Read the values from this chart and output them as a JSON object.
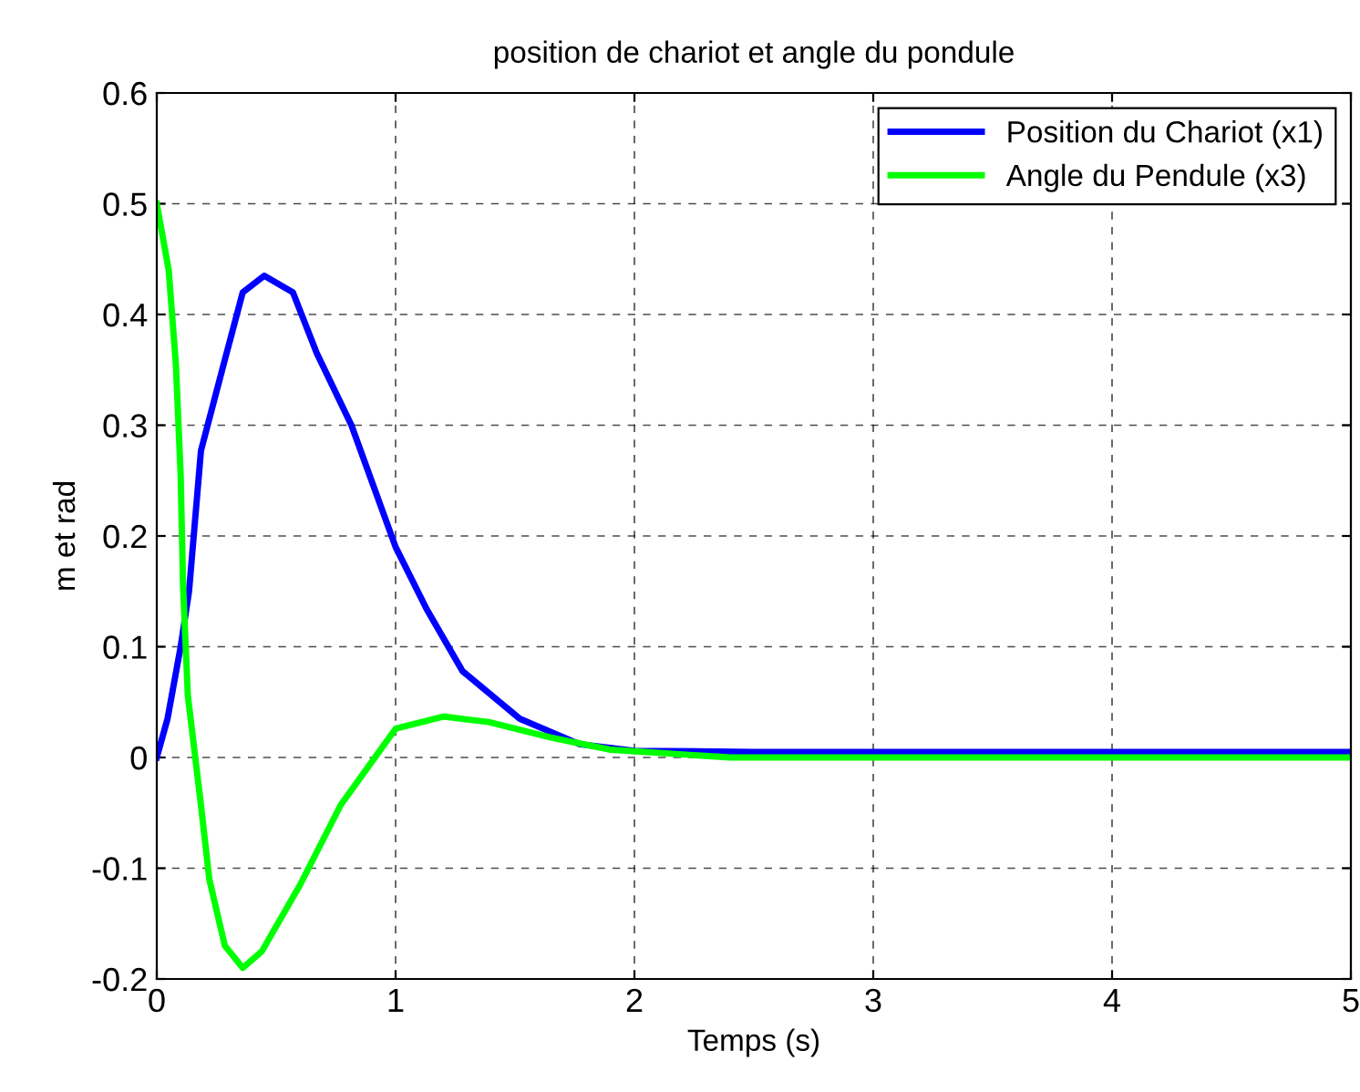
{
  "chart_data": {
    "type": "line",
    "title": "position de chariot et angle du pondule",
    "xlabel": "Temps (s)",
    "ylabel": "m et rad",
    "xlim": [
      0,
      5
    ],
    "ylim": [
      -0.2,
      0.6
    ],
    "xticks": [
      0,
      1,
      2,
      3,
      4,
      5
    ],
    "yticks": [
      -0.2,
      -0.1,
      0,
      0.1,
      0.2,
      0.3,
      0.4,
      0.5,
      0.6
    ],
    "grid": true,
    "legend": "top right",
    "line_style": "solid",
    "series": [
      {
        "name": "Position du Chariot (x1)",
        "color": "#0000ff",
        "x": [
          0,
          0.045,
          0.1,
          0.135,
          0.185,
          0.28,
          0.36,
          0.45,
          0.57,
          0.67,
          0.815,
          1.0,
          1.13,
          1.28,
          1.52,
          1.77,
          2.0,
          2.5,
          5
        ],
        "values": [
          0,
          0.035,
          0.1,
          0.15,
          0.277,
          0.355,
          0.42,
          0.435,
          0.42,
          0.365,
          0.3,
          0.19,
          0.134,
          0.078,
          0.035,
          0.012,
          0.006,
          0.005,
          0.005
        ]
      },
      {
        "name": "Angle du Pendule (x3)",
        "color": "#00ff00",
        "x": [
          0,
          0.05,
          0.08,
          0.1,
          0.11,
          0.13,
          0.185,
          0.22,
          0.285,
          0.36,
          0.44,
          0.6,
          0.77,
          0.88,
          1.0,
          1.2,
          1.39,
          1.65,
          1.9,
          2.4,
          5
        ],
        "values": [
          0.5,
          0.44,
          0.355,
          0.255,
          0.155,
          0.056,
          -0.043,
          -0.11,
          -0.17,
          -0.19,
          -0.175,
          -0.115,
          -0.043,
          -0.01,
          0.026,
          0.037,
          0.032,
          0.018,
          0.007,
          0,
          0
        ]
      }
    ]
  }
}
